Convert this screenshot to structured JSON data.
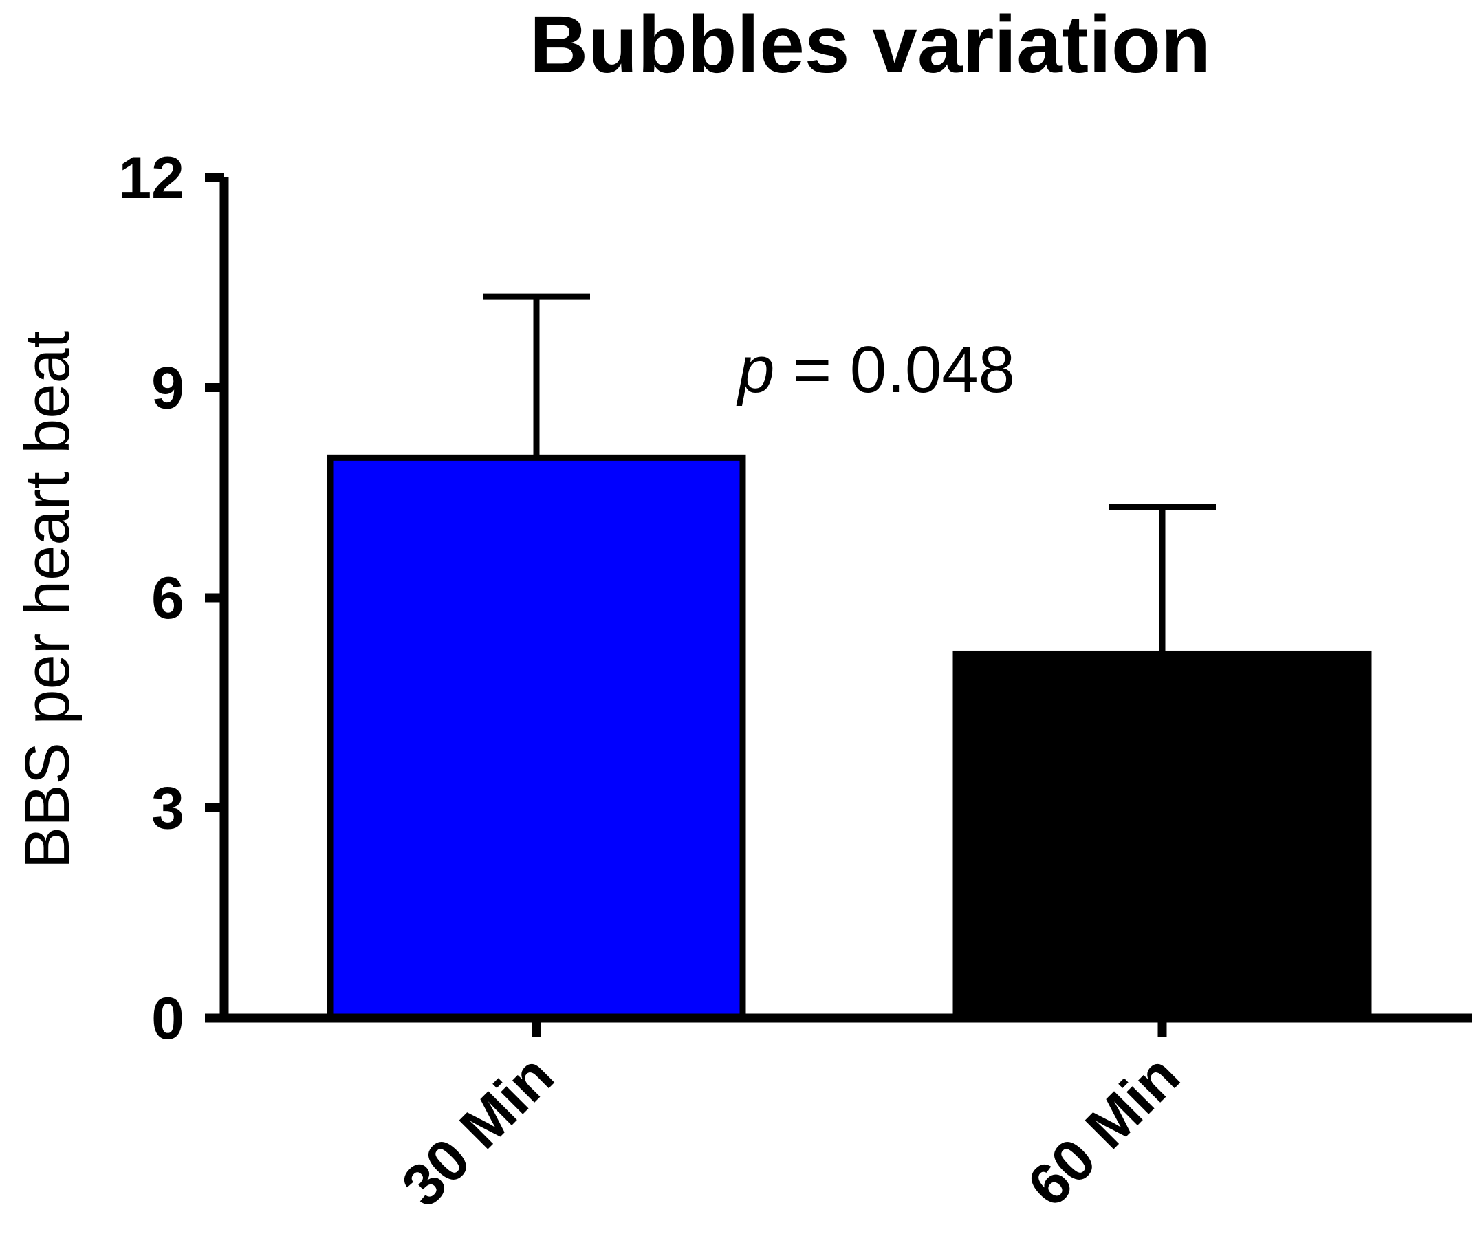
{
  "chart_data": {
    "type": "bar",
    "title": "Bubbles variation",
    "xlabel": "",
    "ylabel": "BBS per  heart beat",
    "categories": [
      "30 Min",
      "60 Min"
    ],
    "values": [
      8.0,
      5.2
    ],
    "error_upper": [
      10.3,
      7.3
    ],
    "bar_colors": [
      "#0000ff",
      "#000000"
    ],
    "ylim": [
      0,
      12
    ],
    "yticks": [
      0,
      3,
      6,
      9,
      12
    ],
    "ytick_labels": [
      "0",
      "3",
      "6",
      "9",
      "12"
    ],
    "grid": false,
    "annotation": {
      "p_symbol": "p",
      "text": " = 0.048",
      "x_category": 0.5,
      "y": 9.3
    }
  }
}
